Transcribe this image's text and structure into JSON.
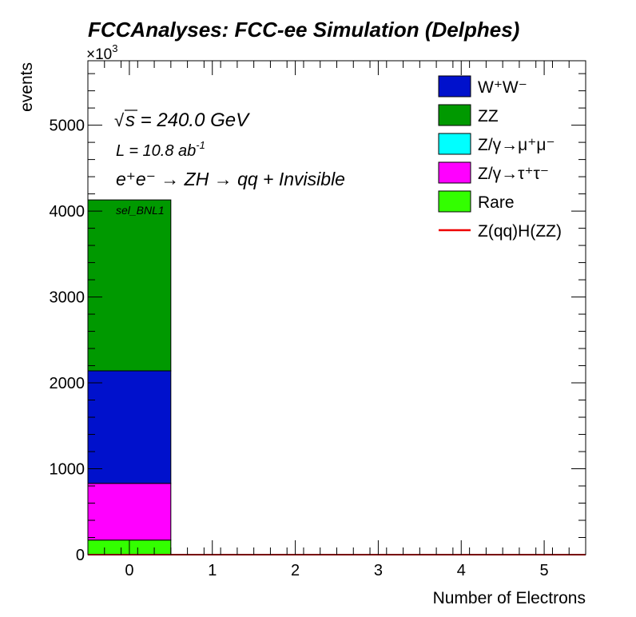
{
  "chart_data": {
    "type": "bar",
    "stacked": true,
    "title": "FCCAnalyses: FCC-ee Simulation (Delphes)",
    "xlabel": "Number of Electrons",
    "ylabel": "events",
    "y_multiplier": "×10",
    "y_multiplier_exp": "3",
    "categories": [
      "0",
      "1",
      "2",
      "3",
      "4",
      "5"
    ],
    "xlim": [
      -0.5,
      5.5
    ],
    "ylim": [
      0,
      5750
    ],
    "yticks": [
      0,
      1000,
      2000,
      3000,
      4000,
      5000
    ],
    "grid": false,
    "legend_position": "top-right",
    "annotations": {
      "sqrt_symbol": "√",
      "sqrt_var": "s",
      "energy": " = 240.0 GeV",
      "lumi": "L = 10.8 ab",
      "lumi_exp": "-1",
      "process": "e⁺e⁻ → ZH → qq + Invisible",
      "selection": "sel_BNL1"
    },
    "series": [
      {
        "name": "Rare",
        "legend_label": "Rare",
        "color": "#33ff00",
        "values": [
          170,
          0,
          0,
          0,
          0,
          0
        ]
      },
      {
        "name": "Z/γ→τ⁺τ⁻",
        "legend_label": "Z/γ→τ⁺τ⁻",
        "color": "#ff00ff",
        "values": [
          660,
          0,
          0,
          0,
          0,
          0
        ]
      },
      {
        "name": "Z/γ→μ⁺μ⁻",
        "legend_label": "Z/γ→μ⁺μ⁻",
        "color": "#00ffff",
        "values": [
          0,
          0,
          0,
          0,
          0,
          0
        ]
      },
      {
        "name": "W⁺W⁻",
        "legend_label": "W⁺W⁻",
        "color": "#0011cc",
        "values": [
          1310,
          0,
          0,
          0,
          0,
          0
        ]
      },
      {
        "name": "ZZ",
        "legend_label": "ZZ",
        "color": "#009900",
        "values": [
          1990,
          0,
          0,
          0,
          0,
          0
        ]
      }
    ],
    "signal": {
      "name": "Z(qq)H(ZZ)",
      "legend_label": "Z(qq)H(ZZ)",
      "color": "#ee0000",
      "values": [
        0,
        0,
        0,
        0,
        0,
        0
      ]
    },
    "legend_order": [
      "W⁺W⁻",
      "ZZ",
      "Z/γ→μ⁺μ⁻",
      "Z/γ→τ⁺τ⁻",
      "Rare",
      "Z(qq)H(ZZ)"
    ]
  }
}
